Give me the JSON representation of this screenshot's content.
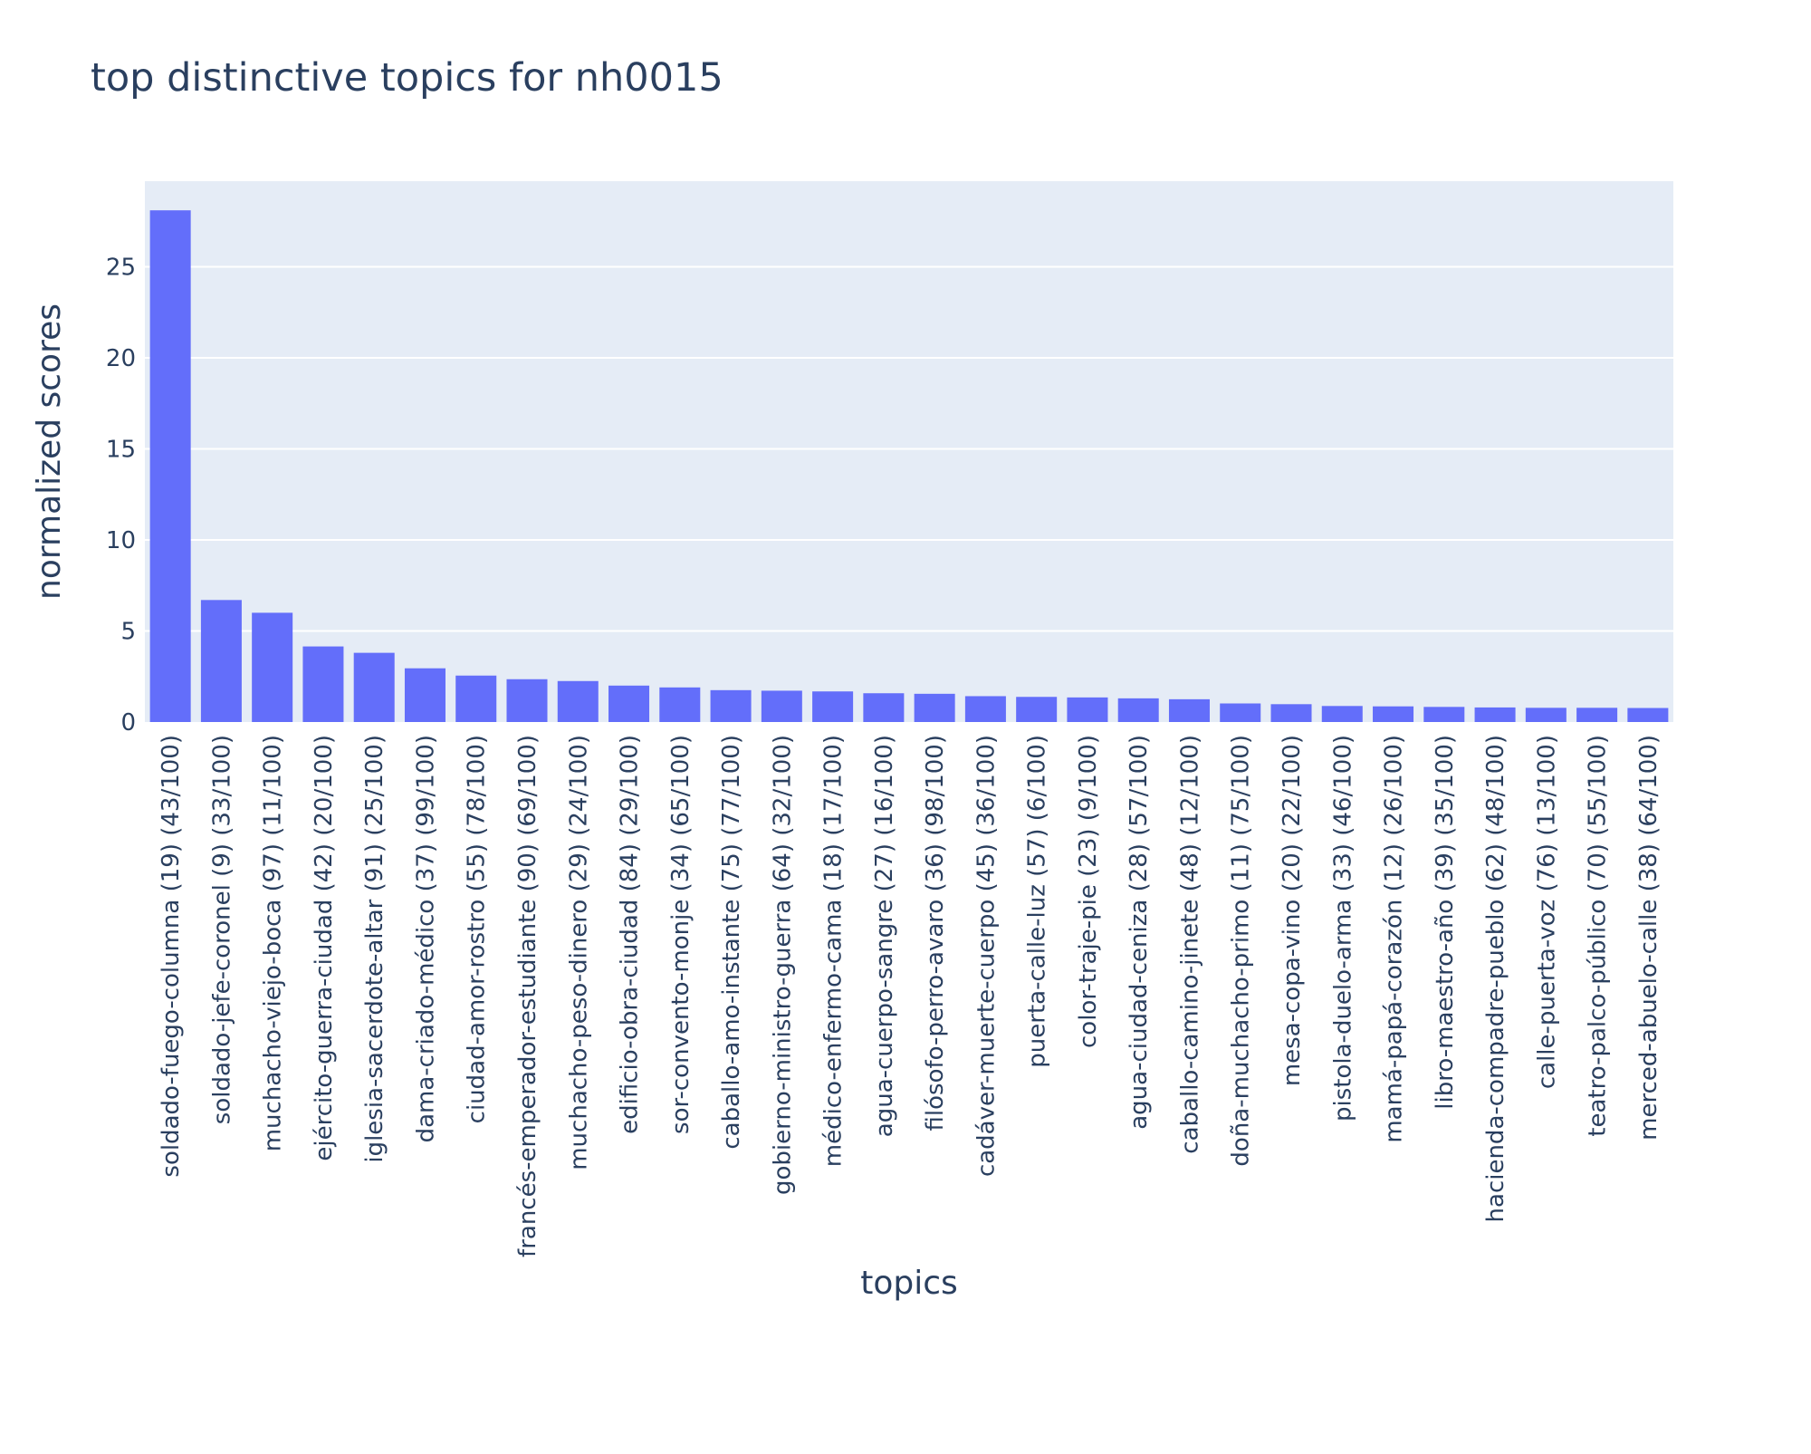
{
  "chart_data": {
    "type": "bar",
    "title": "top distinctive topics for nh0015",
    "xlabel": "topics",
    "ylabel": "normalized scores",
    "ylim": [
      0,
      29.7
    ],
    "yticks": [
      0,
      5,
      10,
      15,
      20,
      25
    ],
    "grid": true,
    "legend": "none",
    "bar_color": "#636efa",
    "plot_bg": "#e5ecf6",
    "categories": [
      "soldado-fuego-columna (19) (43/100)",
      "soldado-jefe-coronel (9) (33/100)",
      "muchacho-viejo-boca (97) (11/100)",
      "ejército-guerra-ciudad (42) (20/100)",
      "iglesia-sacerdote-altar (91) (25/100)",
      "dama-criado-médico (37) (99/100)",
      "ciudad-amor-rostro (55) (78/100)",
      "francés-emperador-estudiante (90) (69/100)",
      "muchacho-peso-dinero (29) (24/100)",
      "edificio-obra-ciudad (84) (29/100)",
      "sor-convento-monje (34) (65/100)",
      "caballo-amo-instante (75) (77/100)",
      "gobierno-ministro-guerra (64) (32/100)",
      "médico-enfermo-cama (18) (17/100)",
      "agua-cuerpo-sangre (27) (16/100)",
      "filósofo-perro-avaro (36) (98/100)",
      "cadáver-muerte-cuerpo (45) (36/100)",
      "puerta-calle-luz (57) (6/100)",
      "color-traje-pie (23) (9/100)",
      "agua-ciudad-ceniza (28) (57/100)",
      "caballo-camino-jinete (48) (12/100)",
      "doña-muchacho-primo (11) (75/100)",
      "mesa-copa-vino (20) (22/100)",
      "pistola-duelo-arma (33) (46/100)",
      "mamá-papá-corazón (12) (26/100)",
      "libro-maestro-año (39) (35/100)",
      "hacienda-compadre-pueblo (62) (48/100)",
      "calle-puerta-voz (76) (13/100)",
      "teatro-palco-público (70) (55/100)",
      "merced-abuelo-calle (38) (64/100)"
    ],
    "values": [
      28.1,
      6.7,
      6.0,
      4.15,
      3.8,
      2.95,
      2.55,
      2.35,
      2.25,
      2.0,
      1.9,
      1.75,
      1.72,
      1.68,
      1.58,
      1.55,
      1.42,
      1.38,
      1.35,
      1.3,
      1.25,
      1.02,
      0.98,
      0.88,
      0.86,
      0.83,
      0.8,
      0.78,
      0.78,
      0.77
    ]
  }
}
